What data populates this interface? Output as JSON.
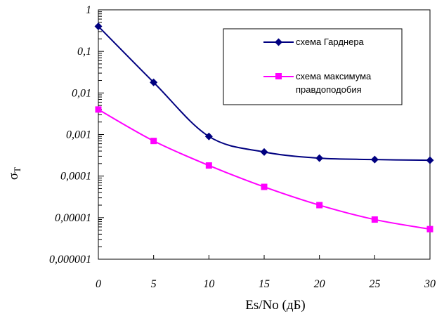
{
  "chart_data": {
    "type": "line",
    "x": [
      0,
      5,
      10,
      15,
      20,
      25,
      30
    ],
    "x_ticks": [
      "0",
      "5",
      "10",
      "15",
      "20",
      "25",
      "30"
    ],
    "xlabel": "Es/No (дБ)",
    "ylabel_main": "σ",
    "ylabel_sub": "T",
    "ylim": [
      1e-06,
      1
    ],
    "yscale": "log",
    "y_ticks": [
      "1",
      "0,1",
      "0,01",
      "0,001",
      "0,0001",
      "0,00001",
      "0,000001"
    ],
    "grid": false,
    "legend_position": "top-right",
    "series": [
      {
        "name": "схема Гарднера",
        "color": "#000080",
        "marker": "diamond",
        "values": [
          0.4,
          0.018,
          0.0009,
          0.00038,
          0.00027,
          0.00025,
          0.00024
        ]
      },
      {
        "name_lines": [
          "схема максимума",
          "правдоподобия"
        ],
        "color": "#ff00ff",
        "marker": "square",
        "values": [
          0.004,
          0.0007,
          0.00018,
          5.5e-05,
          2e-05,
          9e-06,
          5.3e-06
        ]
      }
    ]
  }
}
